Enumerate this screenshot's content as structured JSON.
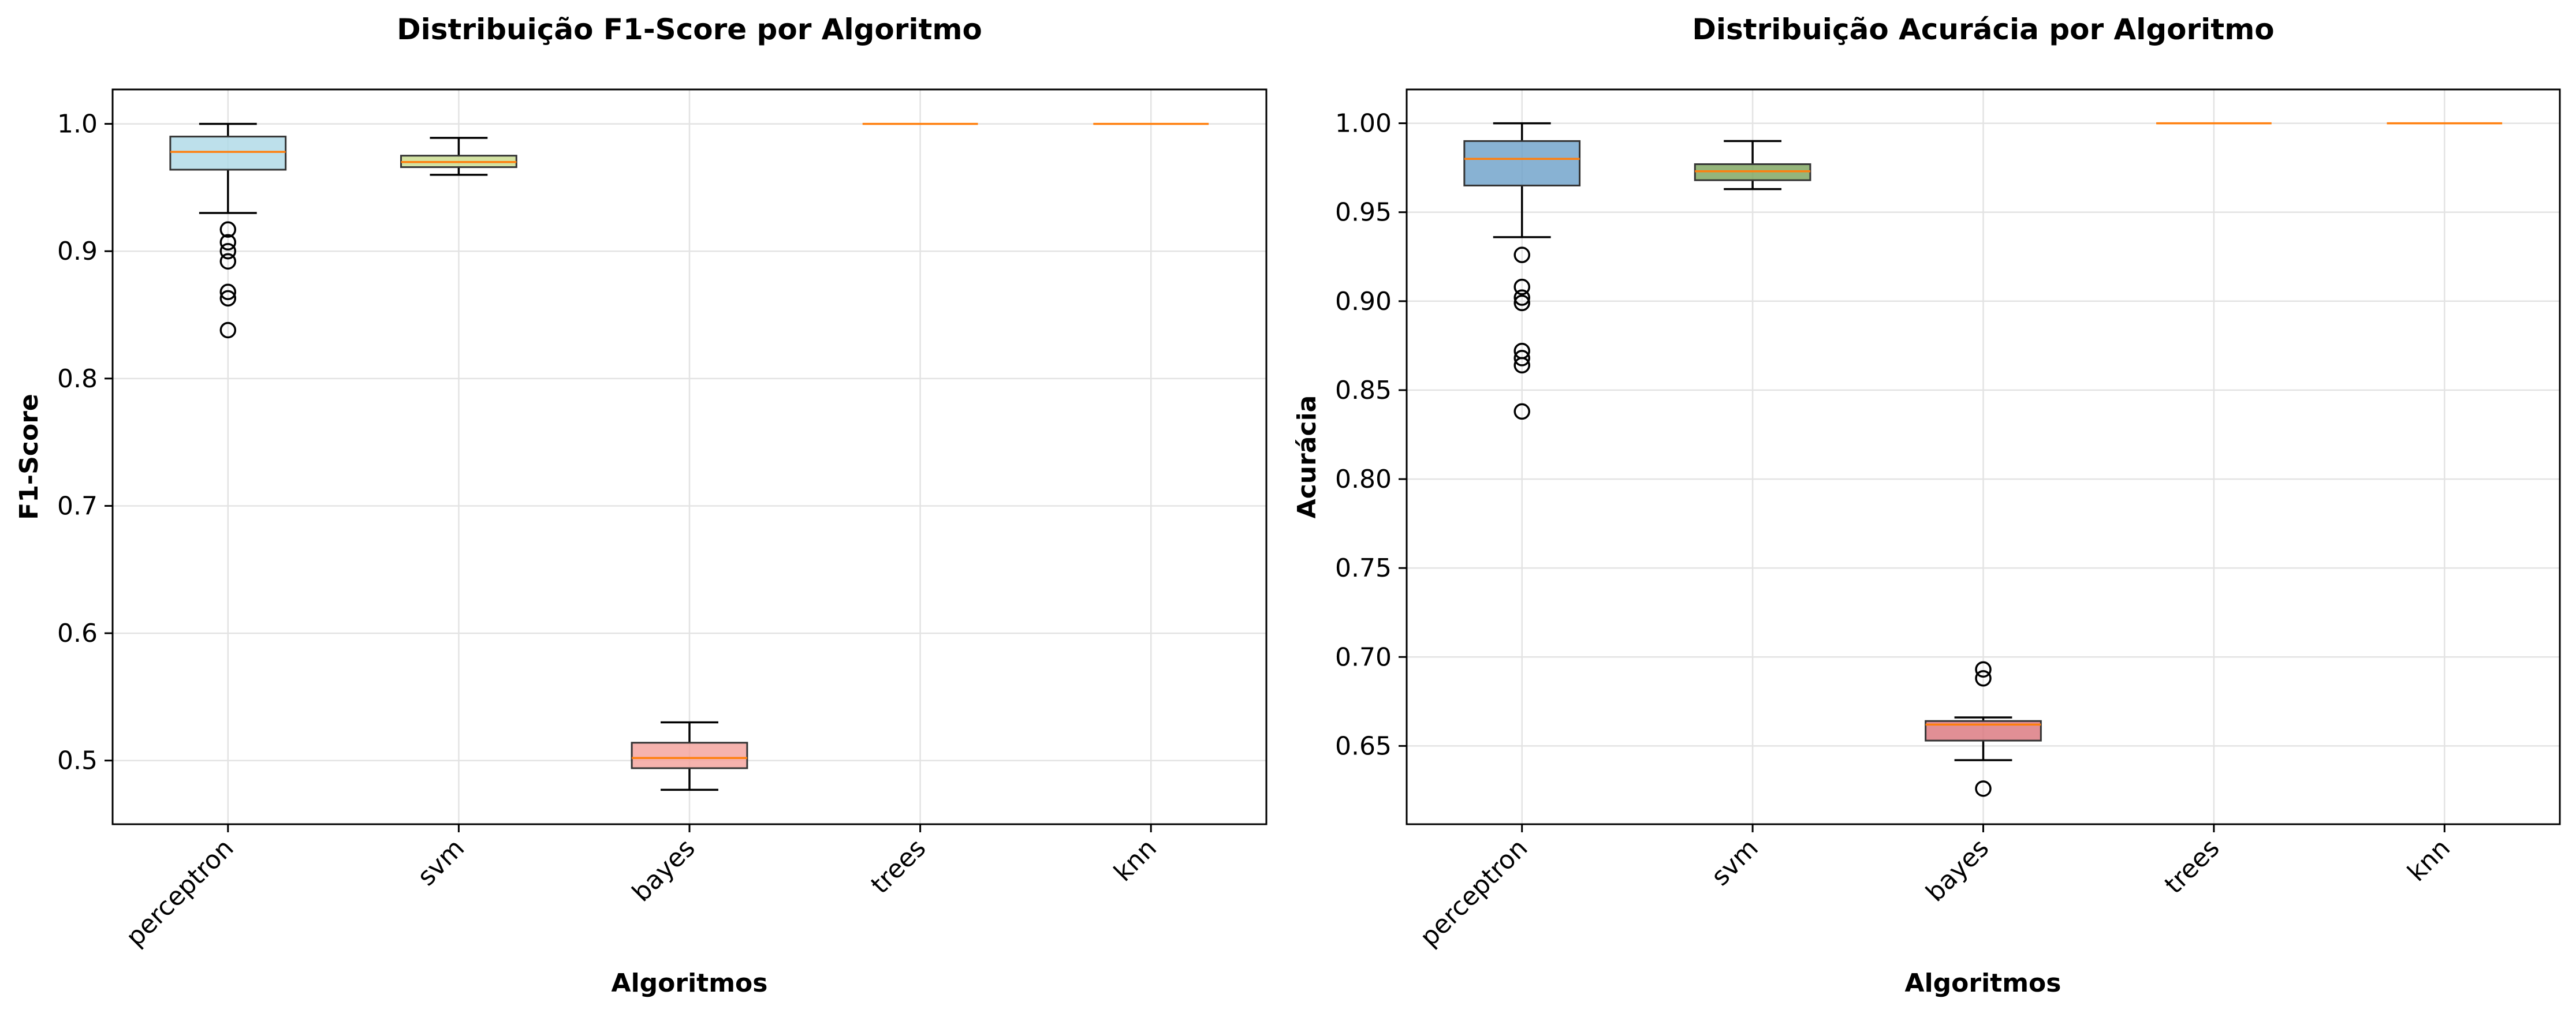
{
  "chart_data": [
    {
      "type": "box",
      "title": "Distribuição F1-Score por Algoritmo",
      "xlabel": "Algoritmos",
      "ylabel": "F1-Score",
      "categories": [
        "perceptron",
        "svm",
        "bayes",
        "trees",
        "knn"
      ],
      "ylim": [
        0.45,
        1.027
      ],
      "yticks": [
        0.5,
        0.6,
        0.7,
        0.8,
        0.9,
        1.0
      ],
      "ytick_labels": [
        "0.5",
        "0.6",
        "0.7",
        "0.8",
        "0.9",
        "1.0"
      ],
      "grid": true,
      "colors": [
        "#add8e6",
        "#c8dc8c",
        "#f4a09a",
        "#f0a070",
        "#f0a070"
      ],
      "median_color": "#ff7f0e",
      "boxes": [
        {
          "whislo": 0.93,
          "q1": 0.964,
          "med": 0.978,
          "q3": 0.99,
          "whishi": 1.0,
          "fliers": [
            0.917,
            0.907,
            0.9,
            0.892,
            0.868,
            0.863,
            0.838
          ]
        },
        {
          "whislo": 0.96,
          "q1": 0.966,
          "med": 0.97,
          "q3": 0.975,
          "whishi": 0.989,
          "fliers": []
        },
        {
          "whislo": 0.477,
          "q1": 0.494,
          "med": 0.502,
          "q3": 0.514,
          "whishi": 0.53,
          "fliers": []
        },
        {
          "whislo": 1.0,
          "q1": 1.0,
          "med": 1.0,
          "q3": 1.0,
          "whishi": 1.0,
          "fliers": []
        },
        {
          "whislo": 1.0,
          "q1": 1.0,
          "med": 1.0,
          "q3": 1.0,
          "whishi": 1.0,
          "fliers": []
        }
      ]
    },
    {
      "type": "box",
      "title": "Distribuição Acurácia por Algoritmo",
      "xlabel": "Algoritmos",
      "ylabel": "Acurácia",
      "categories": [
        "perceptron",
        "svm",
        "bayes",
        "trees",
        "knn"
      ],
      "ylim": [
        0.606,
        1.019
      ],
      "yticks": [
        0.65,
        0.7,
        0.75,
        0.8,
        0.85,
        0.9,
        0.95,
        1.0
      ],
      "ytick_labels": [
        "0.65",
        "0.70",
        "0.75",
        "0.80",
        "0.85",
        "0.90",
        "0.95",
        "1.00"
      ],
      "grid": true,
      "colors": [
        "#6a9fc8",
        "#7aa35a",
        "#d9737a",
        "#e8903c",
        "#e8903c"
      ],
      "median_color": "#ff7f0e",
      "boxes": [
        {
          "whislo": 0.936,
          "q1": 0.965,
          "med": 0.98,
          "q3": 0.99,
          "whishi": 1.0,
          "fliers": [
            0.926,
            0.908,
            0.902,
            0.899,
            0.872,
            0.868,
            0.864,
            0.838
          ]
        },
        {
          "whislo": 0.963,
          "q1": 0.968,
          "med": 0.973,
          "q3": 0.977,
          "whishi": 0.99,
          "fliers": []
        },
        {
          "whislo": 0.642,
          "q1": 0.653,
          "med": 0.662,
          "q3": 0.664,
          "whishi": 0.666,
          "fliers": [
            0.693,
            0.688,
            0.626
          ]
        },
        {
          "whislo": 1.0,
          "q1": 1.0,
          "med": 1.0,
          "q3": 1.0,
          "whishi": 1.0,
          "fliers": []
        },
        {
          "whislo": 1.0,
          "q1": 1.0,
          "med": 1.0,
          "q3": 1.0,
          "whishi": 1.0,
          "fliers": []
        }
      ]
    }
  ]
}
